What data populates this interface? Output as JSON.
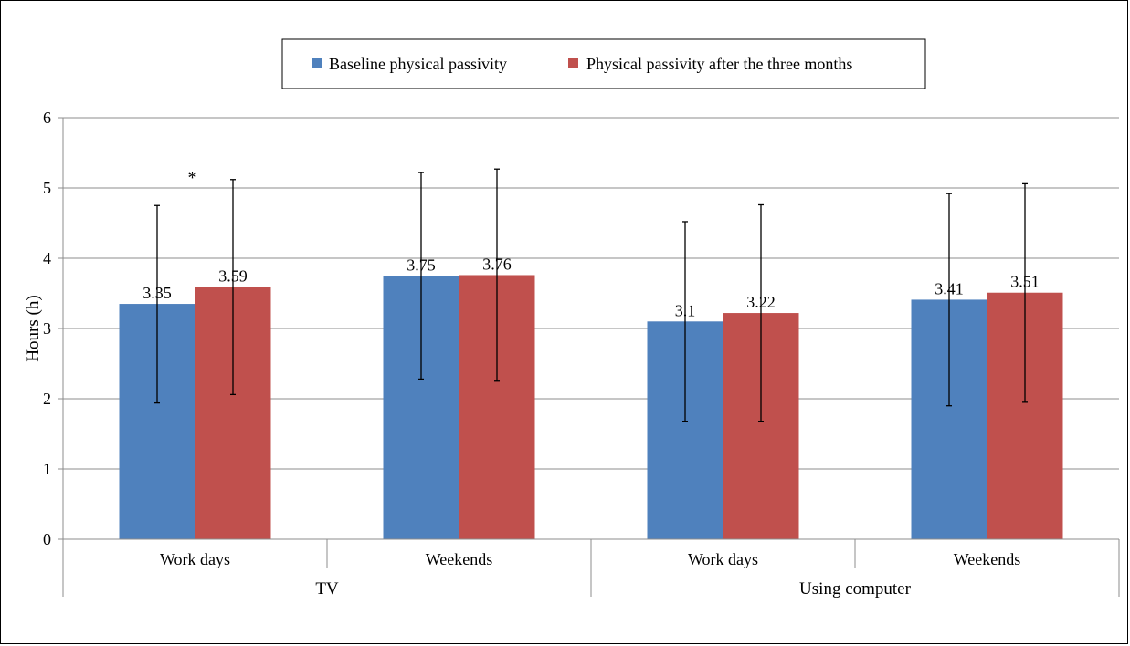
{
  "chart_data": {
    "type": "bar",
    "ylabel": "Hours (h)",
    "ylim": [
      0,
      6
    ],
    "yticks": [
      "0",
      "1",
      "2",
      "3",
      "4",
      "5",
      "6"
    ],
    "grid": true,
    "legend_position": "top",
    "groups": [
      {
        "label": "TV",
        "categories": [
          "Work days",
          "Weekends"
        ]
      },
      {
        "label": "Using computer",
        "categories": [
          "Work days",
          "Weekends"
        ]
      }
    ],
    "categories": [
      "Work days",
      "Weekends",
      "Work days",
      "Weekends"
    ],
    "series": [
      {
        "name": "Baseline physical passivity",
        "color": "#4f81bd",
        "values": [
          3.35,
          3.75,
          3.1,
          3.41
        ],
        "labels": [
          "3.35",
          "3.75",
          "3.1",
          "3.41"
        ],
        "error_low": [
          1.94,
          2.28,
          1.68,
          1.9
        ],
        "error_high": [
          4.75,
          5.22,
          4.52,
          4.92
        ]
      },
      {
        "name": "Physical passivity after the three months",
        "color": "#c0504d",
        "values": [
          3.59,
          3.76,
          3.22,
          3.51
        ],
        "labels": [
          "3.59",
          "3.76",
          "3.22",
          "3.51"
        ],
        "error_low": [
          2.06,
          2.25,
          1.68,
          1.95
        ],
        "error_high": [
          5.12,
          5.27,
          4.76,
          5.06
        ]
      }
    ],
    "annotations": [
      {
        "text": "*",
        "category_index": 0
      }
    ]
  }
}
